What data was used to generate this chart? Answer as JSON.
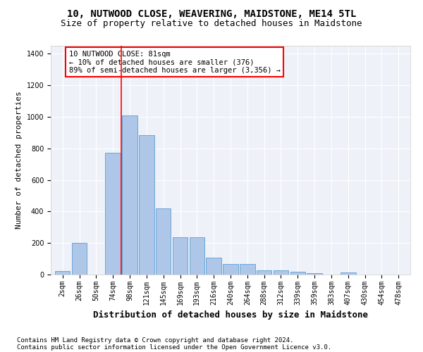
{
  "title": "10, NUTWOOD CLOSE, WEAVERING, MAIDSTONE, ME14 5TL",
  "subtitle": "Size of property relative to detached houses in Maidstone",
  "xlabel": "Distribution of detached houses by size in Maidstone",
  "ylabel": "Number of detached properties",
  "categories": [
    "2sqm",
    "26sqm",
    "50sqm",
    "74sqm",
    "98sqm",
    "121sqm",
    "145sqm",
    "169sqm",
    "193sqm",
    "216sqm",
    "240sqm",
    "264sqm",
    "288sqm",
    "312sqm",
    "339sqm",
    "359sqm",
    "383sqm",
    "407sqm",
    "430sqm",
    "454sqm",
    "478sqm"
  ],
  "values": [
    22,
    203,
    0,
    770,
    1010,
    883,
    420,
    235,
    235,
    107,
    68,
    68,
    25,
    25,
    20,
    11,
    0,
    12,
    0,
    0,
    0
  ],
  "bar_color": "#aec6e8",
  "bar_edge_color": "#5a9fd4",
  "vline_x": 3.5,
  "vline_color": "red",
  "annotation_line1": "10 NUTWOOD CLOSE: 81sqm",
  "annotation_line2": "← 10% of detached houses are smaller (376)",
  "annotation_line3": "89% of semi-detached houses are larger (3,356) →",
  "ylim": [
    0,
    1450
  ],
  "yticks": [
    0,
    200,
    400,
    600,
    800,
    1000,
    1200,
    1400
  ],
  "footer1": "Contains HM Land Registry data © Crown copyright and database right 2024.",
  "footer2": "Contains public sector information licensed under the Open Government Licence v3.0.",
  "bg_color": "#eef2f8",
  "title_fontsize": 10,
  "subtitle_fontsize": 9,
  "ylabel_fontsize": 8,
  "xlabel_fontsize": 9,
  "tick_fontsize": 7,
  "annot_fontsize": 7.5,
  "footer_fontsize": 6.5
}
